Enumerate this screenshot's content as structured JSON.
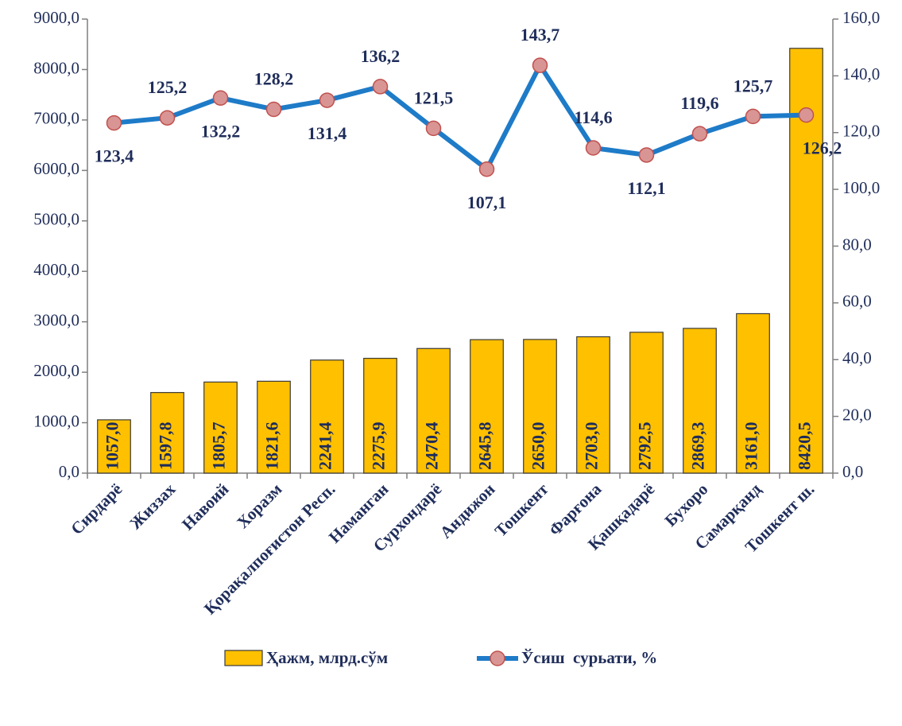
{
  "chart_data": {
    "type": "bar-line",
    "categories": [
      "Сирдарё",
      "Жиззах",
      "Навоий",
      "Хоразм",
      "Қорақалпоғистон Респ.",
      "Наманган",
      "Сурхондарё",
      "Андижон",
      "Тошкент",
      "Фарғона",
      "Қашқадарё",
      "Бухоро",
      "Самарқанд",
      "Тошкент ш."
    ],
    "series": [
      {
        "name": "Ҳажм, млрд.сўм",
        "type": "bar",
        "color": "#ffc000",
        "axis": "y",
        "values": [
          1057.0,
          1597.8,
          1805.7,
          1821.6,
          2241.4,
          2275.9,
          2470.4,
          2645.8,
          2650.0,
          2703.0,
          2792.5,
          2869.3,
          3161.0,
          8420.5
        ],
        "value_labels": [
          "1057,0",
          "1597,8",
          "1805,7",
          "1821,6",
          "2241,4",
          "2275,9",
          "2470,4",
          "2645,8",
          "2650,0",
          "2703,0",
          "2792,5",
          "2869,3",
          "3161,0",
          "8420,5"
        ]
      },
      {
        "name": "Ўсиш  сурьати, %",
        "type": "line",
        "color": "#1e7bc8",
        "axis": "y2",
        "values": [
          123.4,
          125.2,
          132.2,
          128.2,
          131.4,
          136.2,
          121.5,
          107.1,
          143.7,
          114.6,
          112.1,
          119.6,
          125.7,
          126.2
        ],
        "value_labels": [
          "123,4",
          "125,2",
          "132,2",
          "128,2",
          "131,4",
          "136,2",
          "121,5",
          "107,1",
          "143,7",
          "114,6",
          "112,1",
          "119,6",
          "125,7",
          "126,2"
        ]
      }
    ],
    "ylim": [
      0,
      9000
    ],
    "yticks": [
      {
        "value": 0,
        "label": "0,0"
      },
      {
        "value": 1000,
        "label": "1000,0"
      },
      {
        "value": 2000,
        "label": "2000,0"
      },
      {
        "value": 3000,
        "label": "3000,0"
      },
      {
        "value": 4000,
        "label": "4000,0"
      },
      {
        "value": 5000,
        "label": "5000,0"
      },
      {
        "value": 6000,
        "label": "6000,0"
      },
      {
        "value": 7000,
        "label": "7000,0"
      },
      {
        "value": 8000,
        "label": "8000,0"
      },
      {
        "value": 9000,
        "label": "9000,0"
      }
    ],
    "y2lim": [
      0,
      160
    ],
    "y2ticks": [
      {
        "value": 0,
        "label": "0,0"
      },
      {
        "value": 20,
        "label": "20,0"
      },
      {
        "value": 40,
        "label": "40,0"
      },
      {
        "value": 60,
        "label": "60,0"
      },
      {
        "value": 80,
        "label": "80,0"
      },
      {
        "value": 100,
        "label": "100,0"
      },
      {
        "value": 120,
        "label": "120,0"
      },
      {
        "value": 140,
        "label": "140,0"
      },
      {
        "value": 160,
        "label": "160,0"
      }
    ],
    "grid": false,
    "legend": "bottom"
  }
}
